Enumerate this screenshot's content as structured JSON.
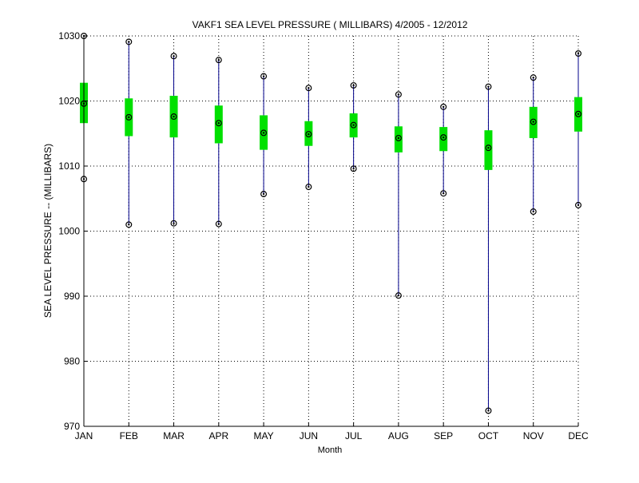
{
  "chart_data": {
    "type": "box",
    "title": "VAKF1  SEA LEVEL PRESSURE ( MILLIBARS) 4/2005 - 12/2012",
    "xlabel": "Month",
    "ylabel": "SEA LEVEL PRESSURE -- (MILLIBARS)",
    "ylim": [
      970,
      1030
    ],
    "yticks": [
      970,
      980,
      990,
      1000,
      1010,
      1020,
      1030
    ],
    "grid": true,
    "colors": {
      "whisker": "#00008b",
      "box": "#00e000",
      "marker": "#000000",
      "grid": "#000000",
      "axis": "#000000"
    },
    "categories": [
      "JAN",
      "FEB",
      "MAR",
      "APR",
      "MAY",
      "JUN",
      "JUL",
      "AUG",
      "SEP",
      "OCT",
      "NOV",
      "DEC"
    ],
    "series": [
      {
        "values": [
          {
            "min": 1008.0,
            "q1": 1016.6,
            "mean": 1019.6,
            "q3": 1022.8,
            "max": 1030.0
          },
          {
            "min": 1001.0,
            "q1": 1014.6,
            "mean": 1017.5,
            "q3": 1020.4,
            "max": 1029.1
          },
          {
            "min": 1001.2,
            "q1": 1014.4,
            "mean": 1017.6,
            "q3": 1020.8,
            "max": 1026.9
          },
          {
            "min": 1001.1,
            "q1": 1013.5,
            "mean": 1016.6,
            "q3": 1019.3,
            "max": 1026.3
          },
          {
            "min": 1005.7,
            "q1": 1012.5,
            "mean": 1015.1,
            "q3": 1017.8,
            "max": 1023.8
          },
          {
            "min": 1006.8,
            "q1": 1013.1,
            "mean": 1014.9,
            "q3": 1016.9,
            "max": 1022.0
          },
          {
            "min": 1009.6,
            "q1": 1014.4,
            "mean": 1016.3,
            "q3": 1018.1,
            "max": 1022.4
          },
          {
            "min": 990.1,
            "q1": 1012.1,
            "mean": 1014.3,
            "q3": 1016.1,
            "max": 1021.0
          },
          {
            "min": 1005.8,
            "q1": 1012.3,
            "mean": 1014.4,
            "q3": 1016.0,
            "max": 1019.1
          },
          {
            "min": 972.4,
            "q1": 1009.4,
            "mean": 1012.8,
            "q3": 1015.5,
            "max": 1022.2
          },
          {
            "min": 1003.0,
            "q1": 1014.3,
            "mean": 1016.8,
            "q3": 1019.1,
            "max": 1023.6
          },
          {
            "min": 1004.0,
            "q1": 1015.3,
            "mean": 1018.0,
            "q3": 1020.6,
            "max": 1027.3
          }
        ]
      }
    ]
  }
}
